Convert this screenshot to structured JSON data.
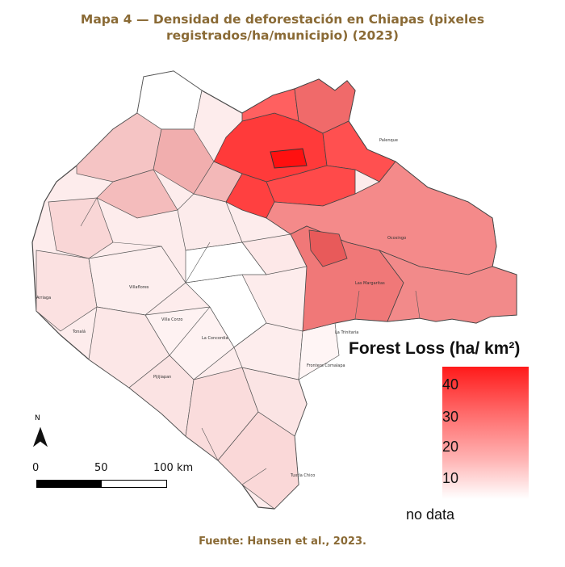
{
  "title": {
    "number": "Mapa 4 —",
    "text": "Densidad de deforestación en Chiapas (pixeles registrados/ha/municipio) (2023)"
  },
  "legend": {
    "title": "Forest Loss (ha/ km²)",
    "ticks": [
      "40",
      "30",
      "20",
      "10"
    ],
    "no_data": "no data"
  },
  "scale": {
    "zero": "0",
    "mid": "50",
    "end": "100 km"
  },
  "north": "N",
  "source": "Fuente: Hansen et al., 2023.",
  "municipalities": [
    "Palenque",
    "Ocosingo",
    "Las Margaritas",
    "Villaflores",
    "Villa Corzo",
    "La Trinitaria",
    "La Concordia",
    "Arriaga",
    "Tonalá",
    "Pijijiapan",
    "Frontera Comalapa",
    "Tuxtla Chico"
  ],
  "colors": {
    "high": "#ff1a1a",
    "mid": "#f28a8a",
    "low": "#fde3e3",
    "nodata": "#ffffff",
    "title": "#8a6a35"
  }
}
